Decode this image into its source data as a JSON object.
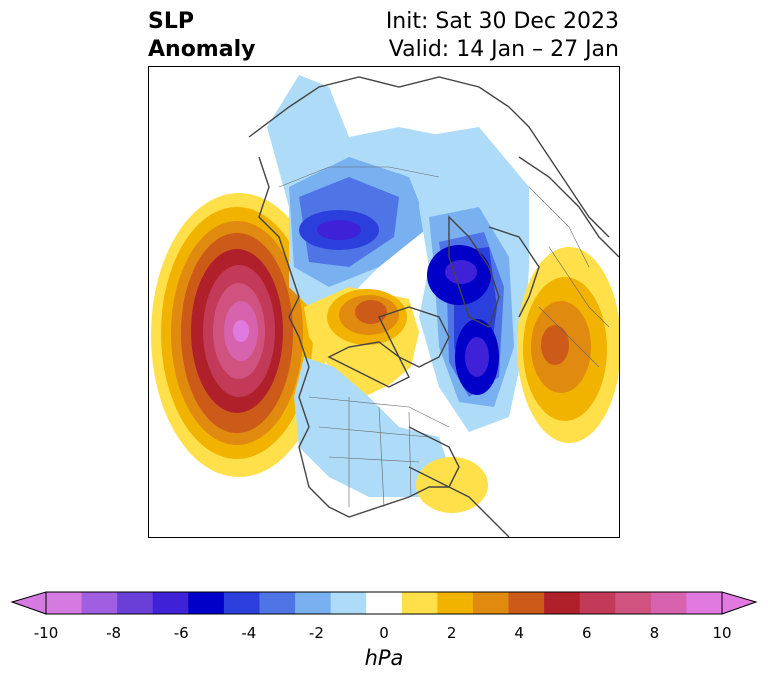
{
  "title": {
    "left": "SLP\nAnomaly",
    "init": "Init: Sat 30 Dec 2023",
    "valid": "Valid: 14 Jan – 27 Jan"
  },
  "colorbar": {
    "unit": "hPa",
    "tick_labels": [
      "-10",
      "-8",
      "-6",
      "-4",
      "-2",
      "0",
      "2",
      "4",
      "6",
      "8",
      "10"
    ],
    "levels": [
      -10,
      -9,
      -8,
      -7,
      -6,
      -5,
      -4,
      -3,
      -2,
      -1,
      1,
      2,
      3,
      4,
      5,
      6,
      7,
      8,
      9,
      10
    ],
    "colors": [
      "#d57ae0",
      "#a05ee0",
      "#6a3fd8",
      "#3f21d8",
      "#0000c8",
      "#2b3fdc",
      "#4f74e6",
      "#79b0f0",
      "#aedcf8",
      "#ffffff",
      "#ffe04a",
      "#f2b300",
      "#e08a10",
      "#cc5a18",
      "#b0202a",
      "#c23a58",
      "#cf527f",
      "#d762ad",
      "#e17ae0"
    ],
    "extend": "both"
  },
  "map": {
    "projection": "north-polar-stereographic",
    "field": "SLP anomaly (hPa)",
    "features": [
      {
        "name": "positive-anomaly-north-pacific",
        "sign": "positive",
        "peak_hpa": 9.5
      },
      {
        "name": "positive-anomaly-eastern-europe",
        "sign": "positive",
        "peak_hpa": 5.5
      },
      {
        "name": "positive-anomaly-canadian-arctic",
        "sign": "positive",
        "peak_hpa": 4.5
      },
      {
        "name": "positive-anomaly-western-atlantic",
        "sign": "positive",
        "peak_hpa": 1.5
      },
      {
        "name": "negative-anomaly-siberia",
        "sign": "negative",
        "peak_hpa": -6
      },
      {
        "name": "negative-anomaly-greenland-sea",
        "sign": "negative",
        "peak_hpa": -7.5
      },
      {
        "name": "negative-anomaly-north-america",
        "sign": "negative",
        "peak_hpa": -2
      }
    ]
  }
}
